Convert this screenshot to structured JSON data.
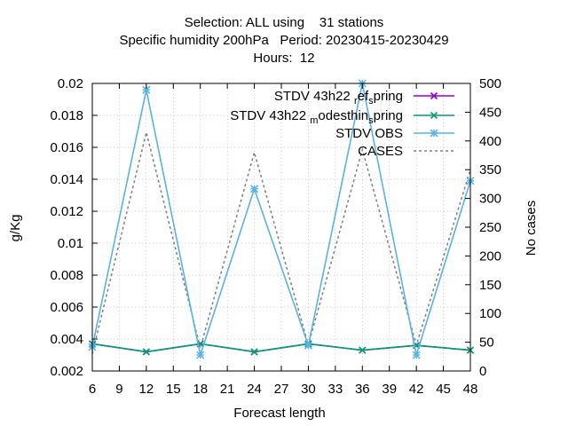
{
  "chart_data": {
    "type": "line",
    "title_lines": [
      "Selection: ALL using    31 stations",
      "Specific humidity 200hPa   Period: 20230415-20230429",
      "Hours:  12"
    ],
    "xlabel": "Forecast length",
    "ylabel": "g/Kg",
    "y2label": "No cases",
    "x": [
      6,
      12,
      18,
      24,
      30,
      36,
      42,
      48
    ],
    "xticks": [
      6,
      9,
      12,
      15,
      18,
      21,
      24,
      27,
      30,
      33,
      36,
      39,
      42,
      45,
      48
    ],
    "xlim": [
      6,
      48
    ],
    "ylim": [
      0.002,
      0.02
    ],
    "yticks": [
      0.002,
      0.004,
      0.006,
      0.008,
      0.01,
      0.012,
      0.014,
      0.016,
      0.018,
      0.02
    ],
    "yticklabels": [
      "0.002",
      "0.004",
      "0.006",
      "0.008",
      "0.01",
      "0.012",
      "0.014",
      "0.016",
      "0.018",
      "0.02"
    ],
    "y2lim": [
      0,
      500
    ],
    "y2ticks": [
      0,
      50,
      100,
      150,
      200,
      250,
      300,
      350,
      400,
      450,
      500
    ],
    "grid": true,
    "legend_position": "top-right",
    "series": [
      {
        "name": "STDV 43h22",
        "name_sub1": "r",
        "name_mid": "ef",
        "name_sub2": "s",
        "name_end": "pring",
        "color": "#9400d3",
        "axis": "y",
        "marker": "x",
        "values": [
          0.0037,
          0.0032,
          0.0037,
          0.0032,
          0.0037,
          0.0033,
          0.0036,
          0.0033
        ]
      },
      {
        "name": "STDV 43h22",
        "name_sub1": "m",
        "name_mid": "odesthin",
        "name_sub2": "s",
        "name_end": "pring",
        "color": "#009e73",
        "axis": "y",
        "marker": "x",
        "values": [
          0.0037,
          0.0032,
          0.0037,
          0.0032,
          0.0037,
          0.0033,
          0.0036,
          0.0033
        ]
      },
      {
        "name": "STDV OBS",
        "color": "#56b4e9",
        "axis": "y",
        "marker": "star",
        "values": [
          0.0035,
          0.0196,
          0.003,
          0.0134,
          0.0036,
          0.02,
          0.003,
          0.0139
        ]
      },
      {
        "name": "CASES",
        "color": "#808080",
        "axis": "y2",
        "dashed": true,
        "values": [
          30,
          415,
          40,
          380,
          45,
          385,
          45,
          350
        ]
      }
    ]
  }
}
